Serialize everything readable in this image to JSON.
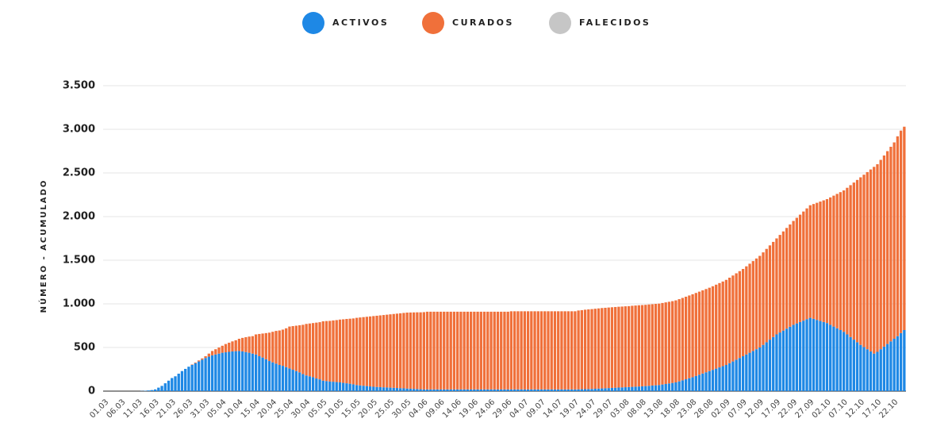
{
  "chart_data": {
    "type": "stacked_bar",
    "y_label": "NÚMERO - ACUMULADO",
    "ylim": [
      0,
      3500
    ],
    "yticks": [
      0,
      500,
      {
        "value": 1000,
        "label": "1.000"
      },
      {
        "value": 1500,
        "label": "1.500"
      },
      {
        "value": 2000,
        "label": "2.000"
      },
      {
        "value": 2500,
        "label": "2.500"
      },
      {
        "value": 3000,
        "label": "3.000"
      },
      {
        "value": 3500,
        "label": "3.500"
      }
    ],
    "grid": true,
    "legend": "top",
    "categories": [
      "01.03",
      null,
      null,
      null,
      null,
      "06.03",
      null,
      null,
      null,
      null,
      "11.03",
      null,
      null,
      null,
      null,
      "16.03",
      null,
      null,
      null,
      null,
      "21.03",
      null,
      null,
      null,
      null,
      "26.03",
      null,
      null,
      null,
      null,
      "31.03",
      null,
      null,
      null,
      null,
      "05.04",
      null,
      null,
      null,
      null,
      "10.04",
      null,
      null,
      null,
      null,
      "15.04",
      null,
      null,
      null,
      null,
      "20.04",
      null,
      null,
      null,
      null,
      "25.04",
      null,
      null,
      null,
      null,
      "30.04",
      null,
      null,
      null,
      null,
      "05.05",
      null,
      null,
      null,
      null,
      "10.05",
      null,
      null,
      null,
      null,
      "15.05",
      null,
      null,
      null,
      null,
      "20.05",
      null,
      null,
      null,
      null,
      "25.05",
      null,
      null,
      null,
      null,
      "30.05",
      null,
      null,
      null,
      null,
      "04.06",
      null,
      null,
      null,
      null,
      "09.06",
      null,
      null,
      null,
      null,
      "14.06",
      null,
      null,
      null,
      null,
      "19.06",
      null,
      null,
      null,
      null,
      "24.06",
      null,
      null,
      null,
      null,
      "29.06",
      null,
      null,
      null,
      null,
      "04.07",
      null,
      null,
      null,
      null,
      "09.07",
      null,
      null,
      null,
      null,
      "14.07",
      null,
      null,
      null,
      null,
      "19.07",
      null,
      null,
      null,
      null,
      "24.07",
      null,
      null,
      null,
      null,
      "29.07",
      null,
      null,
      null,
      null,
      "03.08",
      null,
      null,
      null,
      null,
      "08.08",
      null,
      null,
      null,
      null,
      "13.08",
      null,
      null,
      null,
      null,
      "18.08",
      null,
      null,
      null,
      null,
      "23.08",
      null,
      null,
      null,
      null,
      "28.08",
      null,
      null,
      null,
      null,
      "02.09",
      null,
      null,
      null,
      null,
      "07.09",
      null,
      null,
      null,
      null,
      "12.09",
      null,
      null,
      null,
      null,
      "17.09",
      null,
      null,
      null,
      null,
      "22.09",
      null,
      null,
      null,
      null,
      "27.09",
      null,
      null,
      null,
      null,
      "02.10",
      null,
      null,
      null,
      null,
      "07.10",
      null,
      null,
      null,
      null,
      "12.10",
      null,
      null,
      null,
      null,
      "17.10",
      null,
      null,
      null,
      null,
      "22.10",
      null,
      null,
      null
    ],
    "series": [
      {
        "name": "ACTIVOS",
        "color": "#1e88e5",
        "values": [
          0,
          0,
          0,
          0,
          0,
          0,
          0,
          0,
          0,
          0,
          0,
          2,
          4,
          8,
          12,
          20,
          40,
          60,
          90,
          120,
          150,
          170,
          200,
          230,
          255,
          280,
          300,
          320,
          340,
          360,
          380,
          395,
          410,
          420,
          430,
          440,
          445,
          450,
          455,
          458,
          460,
          455,
          448,
          440,
          430,
          420,
          400,
          385,
          365,
          345,
          330,
          315,
          300,
          290,
          275,
          260,
          245,
          230,
          215,
          195,
          180,
          170,
          160,
          145,
          135,
          120,
          115,
          110,
          108,
          104,
          100,
          95,
          90,
          85,
          78,
          70,
          66,
          62,
          58,
          54,
          50,
          48,
          46,
          44,
          42,
          40,
          38,
          36,
          34,
          32,
          30,
          28,
          26,
          24,
          22,
          20,
          20,
          20,
          20,
          20,
          20,
          20,
          20,
          20,
          20,
          20,
          20,
          20,
          20,
          20,
          20,
          20,
          20,
          20,
          20,
          20,
          20,
          20,
          20,
          20,
          20,
          20,
          20,
          20,
          20,
          20,
          20,
          20,
          20,
          20,
          20,
          20,
          20,
          20,
          20,
          20,
          20,
          20,
          20,
          20,
          20,
          21,
          22,
          23,
          24,
          25,
          27,
          29,
          31,
          33,
          35,
          37,
          39,
          41,
          43,
          45,
          47,
          49,
          51,
          53,
          55,
          58,
          61,
          64,
          67,
          70,
          76,
          82,
          88,
          94,
          100,
          112,
          124,
          136,
          148,
          160,
          174,
          188,
          202,
          216,
          230,
          244,
          258,
          272,
          286,
          300,
          320,
          340,
          360,
          380,
          400,
          420,
          440,
          460,
          480,
          500,
          530,
          560,
          590,
          620,
          650,
          672,
          694,
          716,
          738,
          760,
          776,
          792,
          808,
          824,
          840,
          828,
          816,
          804,
          792,
          780,
          760,
          740,
          720,
          700,
          680,
          650,
          620,
          590,
          560,
          530,
          505,
          480,
          455,
          430,
          450,
          480,
          510,
          540,
          570,
          600,
          630,
          665,
          700
        ]
      },
      {
        "name": "CURADOS",
        "color": "#f0703a",
        "values": [
          0,
          0,
          0,
          0,
          0,
          0,
          0,
          0,
          0,
          0,
          0,
          0,
          0,
          0,
          0,
          0,
          0,
          0,
          0,
          0,
          0,
          0,
          0,
          0,
          0,
          0,
          5,
          8,
          12,
          15,
          20,
          35,
          50,
          60,
          70,
          80,
          95,
          105,
          115,
          125,
          140,
          155,
          170,
          185,
          200,
          230,
          255,
          275,
          300,
          325,
          350,
          375,
          395,
          415,
          445,
          480,
          500,
          520,
          540,
          565,
          590,
          605,
          620,
          640,
          655,
          680,
          688,
          695,
          702,
          710,
          720,
          728,
          737,
          745,
          755,
          770,
          778,
          786,
          794,
          802,
          810,
          816,
          822,
          828,
          834,
          840,
          846,
          852,
          858,
          864,
          870,
          873,
          876,
          879,
          881,
          885,
          890,
          890,
          890,
          890,
          890,
          890,
          890,
          890,
          890,
          890,
          890,
          890,
          890,
          890,
          890,
          890,
          890,
          890,
          890,
          890,
          890,
          890,
          890,
          890,
          890,
          895,
          895,
          895,
          895,
          895,
          895,
          895,
          895,
          895,
          895,
          895,
          895,
          895,
          895,
          895,
          895,
          895,
          895,
          895,
          895,
          903,
          906,
          910,
          913,
          915,
          917,
          919,
          921,
          922,
          923,
          924,
          925,
          926,
          926,
          927,
          927,
          929,
          930,
          931,
          931,
          931,
          932,
          932,
          933,
          933,
          934,
          935,
          936,
          937,
          940,
          942,
          944,
          946,
          948,
          950,
          951,
          952,
          953,
          954,
          955,
          958,
          962,
          966,
          970,
          975,
          980,
          985,
          990,
          995,
          1000,
          1010,
          1020,
          1030,
          1040,
          1050,
          1060,
          1070,
          1080,
          1090,
          1100,
          1118,
          1136,
          1154,
          1172,
          1190,
          1210,
          1230,
          1250,
          1270,
          1290,
          1316,
          1342,
          1368,
          1394,
          1420,
          1460,
          1500,
          1540,
          1580,
          1620,
          1680,
          1740,
          1800,
          1860,
          1920,
          1975,
          2030,
          2085,
          2140,
          2150,
          2170,
          2190,
          2210,
          2230,
          2250,
          2290,
          2320,
          2330
        ]
      },
      {
        "name": "FALECIDOS",
        "color": "#c6c6c6",
        "values": [
          0,
          0,
          0,
          0,
          0,
          0,
          0,
          0,
          0,
          0,
          0,
          0,
          0,
          0,
          0,
          0,
          0,
          0,
          0,
          0,
          0,
          0,
          0,
          0,
          0,
          0,
          0,
          0,
          0,
          0,
          0,
          0,
          0,
          0,
          0,
          0,
          0,
          0,
          0,
          0,
          0,
          0,
          0,
          0,
          0,
          0,
          0,
          0,
          0,
          0,
          0,
          0,
          0,
          0,
          0,
          0,
          0,
          0,
          0,
          0,
          0,
          0,
          0,
          0,
          0,
          0,
          0,
          0,
          0,
          0,
          0,
          0,
          0,
          0,
          0,
          0,
          0,
          0,
          0,
          0,
          0,
          0,
          0,
          0,
          0,
          0,
          0,
          0,
          0,
          0,
          0,
          0,
          0,
          0,
          0,
          0,
          0,
          0,
          0,
          0,
          0,
          0,
          0,
          0,
          0,
          0,
          0,
          0,
          0,
          0,
          0,
          0,
          0,
          0,
          0,
          0,
          0,
          0,
          0,
          0,
          0,
          0,
          0,
          0,
          0,
          0,
          0,
          0,
          0,
          0,
          0,
          0,
          0,
          0,
          0,
          0,
          0,
          0,
          0,
          0,
          0,
          0,
          0,
          0,
          0,
          0,
          0,
          0,
          0,
          0,
          0,
          0,
          0,
          0,
          0,
          0,
          0,
          0,
          0,
          0,
          0,
          0,
          0,
          0,
          0,
          0,
          0,
          0,
          0,
          0,
          0,
          0,
          0,
          0,
          0,
          0,
          0,
          0,
          0,
          0,
          0,
          0,
          0,
          0,
          0,
          0,
          0,
          0,
          0,
          0,
          0,
          0,
          0,
          0,
          0,
          0,
          0,
          0,
          0,
          0,
          0,
          0,
          0,
          0,
          0,
          0,
          0,
          0,
          0,
          0,
          0,
          0,
          0,
          0,
          0,
          0,
          0,
          0,
          0,
          0,
          0,
          0,
          0,
          0,
          0,
          0,
          0,
          0,
          0,
          0,
          0,
          0,
          0,
          0,
          0,
          0,
          0,
          0,
          0
        ]
      }
    ]
  }
}
